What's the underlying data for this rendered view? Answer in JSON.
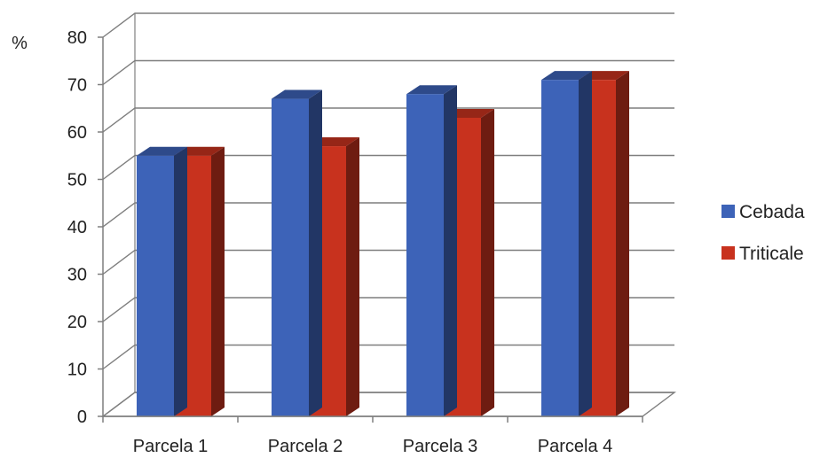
{
  "chart_data": {
    "type": "bar",
    "title": "",
    "xlabel": "",
    "ylabel": "%",
    "ylim": [
      0,
      80
    ],
    "yticks": [
      0,
      10,
      20,
      30,
      40,
      50,
      60,
      70,
      80
    ],
    "grid": true,
    "legend_position": "right",
    "style": "3d-clustered-column",
    "categories": [
      "Parcela 1",
      "Parcela 2",
      "Parcela 3",
      "Parcela 4"
    ],
    "series": [
      {
        "name": "Cebada",
        "values": [
          55,
          67,
          68,
          71
        ],
        "color": "#3d63b8"
      },
      {
        "name": "Triticale",
        "values": [
          55,
          57,
          63,
          71
        ],
        "color": "#c8321e"
      }
    ]
  }
}
